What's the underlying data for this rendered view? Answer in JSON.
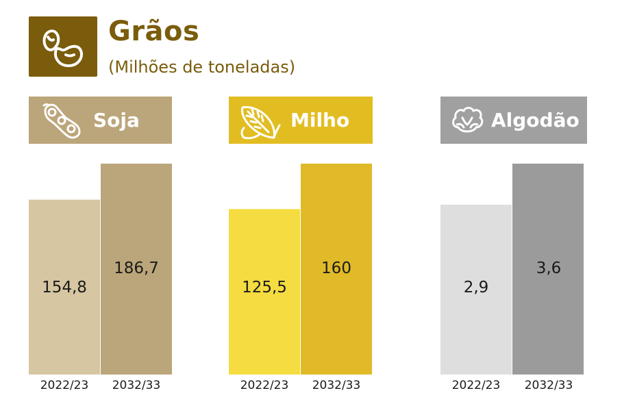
{
  "header": {
    "title": "Grãos",
    "subtitle": "(Milhões de toneladas)",
    "icon": "bean-icon",
    "color": "#7a5c0c"
  },
  "chart_data": {
    "type": "bar",
    "title": "Grãos",
    "subtitle": "(Milhões de toneladas)",
    "categories": [
      "2022/23",
      "2032/33"
    ],
    "groups": [
      {
        "name": "Soja",
        "icon": "soybean-pod-icon",
        "header_color": "#bba57a",
        "colors": [
          "#d6c6a1",
          "#bba57a"
        ],
        "values": [
          154.8,
          186.7
        ],
        "labels": [
          "154,8",
          "186,7"
        ]
      },
      {
        "name": "Milho",
        "icon": "corn-icon",
        "header_color": "#e2bd22",
        "colors": [
          "#f5dc40",
          "#e0ba28"
        ],
        "values": [
          125.5,
          160
        ],
        "labels": [
          "125,5",
          "160"
        ]
      },
      {
        "name": "Algodão",
        "icon": "cotton-icon",
        "header_color": "#a0a0a0",
        "colors": [
          "#dedede",
          "#9b9b9b"
        ],
        "values": [
          2.9,
          3.6
        ],
        "labels": [
          "2,9",
          "3,6"
        ]
      }
    ]
  }
}
